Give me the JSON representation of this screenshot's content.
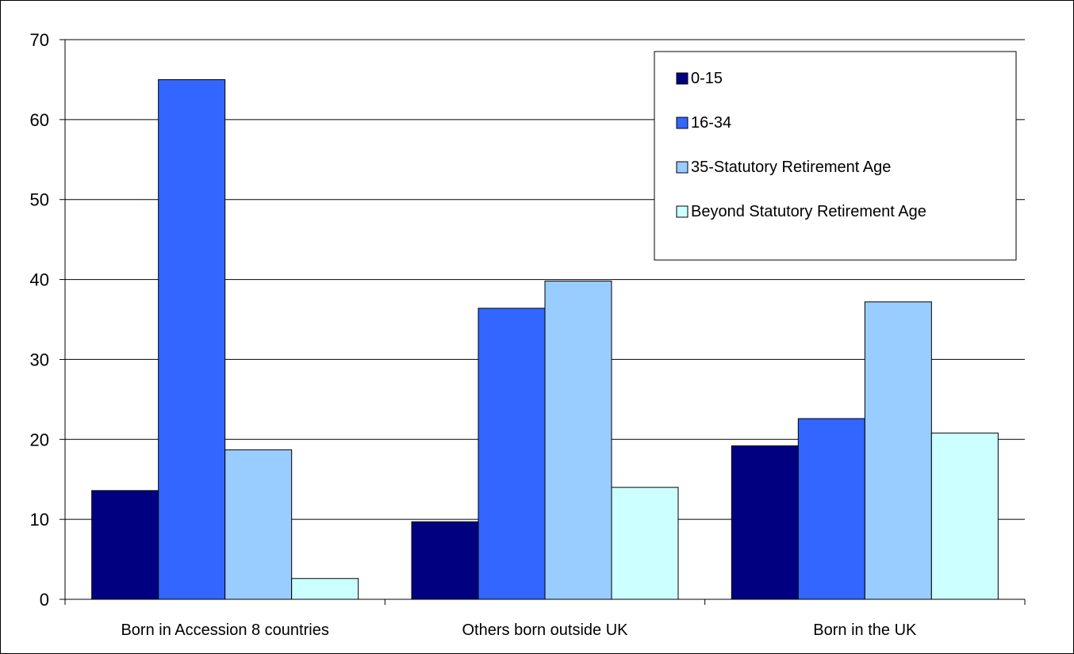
{
  "chart_data": {
    "type": "bar",
    "title": "",
    "xlabel": "",
    "ylabel": "",
    "ylim": [
      0,
      70
    ],
    "yticks": [
      0,
      10,
      20,
      30,
      40,
      50,
      60,
      70
    ],
    "grid": true,
    "legend_position": "top-right",
    "categories": [
      "Born in Accession 8 countries",
      "Others born outside UK",
      "Born in the UK"
    ],
    "series": [
      {
        "name": "0-15",
        "color": "#000080",
        "values": [
          13.6,
          9.7,
          19.2
        ]
      },
      {
        "name": "16-34",
        "color": "#3366FF",
        "values": [
          65.0,
          36.4,
          22.6
        ]
      },
      {
        "name": "35-Statutory Retirement Age",
        "color": "#99CCFF",
        "values": [
          18.7,
          39.8,
          37.2
        ]
      },
      {
        "name": "Beyond Statutory Retirement Age",
        "color": "#CCFFFF",
        "values": [
          2.6,
          14.0,
          20.8
        ]
      }
    ]
  }
}
